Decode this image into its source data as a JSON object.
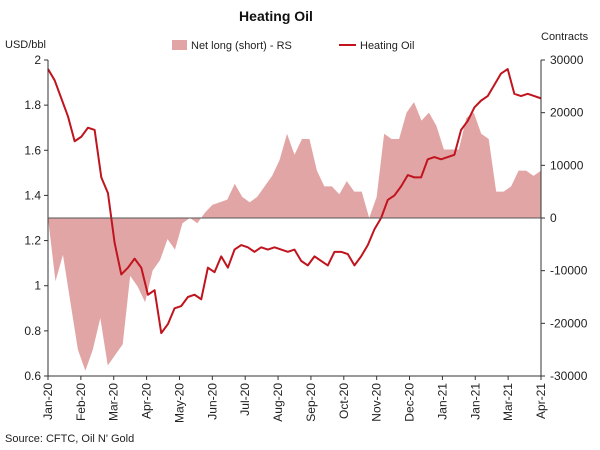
{
  "chart_data": {
    "type": "line",
    "title": "Heating Oil",
    "left_axis_label": "USD/bbl",
    "right_axis_label": "Contracts",
    "source": "Source: CFTC, Oil N' Gold",
    "left_ylim": [
      0.6,
      2.0
    ],
    "right_ylim": [
      -30000,
      30000
    ],
    "left_ticks": [
      "0.6",
      "0.8",
      "1",
      "1.2",
      "1.4",
      "1.6",
      "1.8",
      "2"
    ],
    "right_ticks": [
      "-30000",
      "-20000",
      "-10000",
      "0",
      "10000",
      "20000",
      "30000"
    ],
    "x_ticks": [
      "Jan-20",
      "Feb-20",
      "Mar-20",
      "Apr-20",
      "May-20",
      "Jun-20",
      "Jul-20",
      "Aug-20",
      "Sep-20",
      "Oct-20",
      "Nov-20",
      "Dec-20",
      "Jan-21",
      "Jan-21",
      "Mar-21",
      "Apr-21"
    ],
    "legend": [
      "Net long (short) - RS",
      "Heating Oil"
    ],
    "legend_position": "top",
    "colors": {
      "area": "#e2a5a5",
      "line": "#c0141e"
    },
    "series": [
      {
        "name": "Net long (short) - RS",
        "type": "area",
        "axis": "right",
        "values": [
          0,
          -12000,
          -7000,
          -16000,
          -25000,
          -29000,
          -25000,
          -19000,
          -28000,
          -26000,
          -24000,
          -11000,
          -13000,
          -16000,
          -10000,
          -8000,
          -4000,
          -6000,
          -1000,
          0,
          -1000,
          1000,
          2500,
          3000,
          3500,
          6500,
          4000,
          3000,
          4000,
          6000,
          8000,
          11000,
          16000,
          12000,
          15000,
          15000,
          9000,
          6000,
          6000,
          4500,
          7000,
          5000,
          5000,
          0,
          4000,
          16000,
          15000,
          15000,
          20000,
          22000,
          18500,
          20000,
          17500,
          13000,
          13000,
          13000,
          19000,
          20000,
          16000,
          15000,
          5000,
          5000,
          6000,
          9000,
          9000,
          8000,
          9000
        ]
      },
      {
        "name": "Heating Oil",
        "type": "line",
        "axis": "left",
        "values": [
          1.96,
          1.91,
          1.83,
          1.75,
          1.64,
          1.66,
          1.7,
          1.69,
          1.48,
          1.41,
          1.19,
          1.05,
          1.08,
          1.12,
          1.08,
          0.96,
          0.98,
          0.79,
          0.83,
          0.9,
          0.91,
          0.95,
          0.96,
          0.94,
          1.08,
          1.06,
          1.13,
          1.08,
          1.16,
          1.18,
          1.17,
          1.15,
          1.17,
          1.16,
          1.17,
          1.16,
          1.15,
          1.16,
          1.11,
          1.09,
          1.13,
          1.11,
          1.09,
          1.15,
          1.15,
          1.14,
          1.09,
          1.13,
          1.18,
          1.25,
          1.3,
          1.38,
          1.4,
          1.44,
          1.49,
          1.48,
          1.48,
          1.56,
          1.57,
          1.56,
          1.57,
          1.58,
          1.69,
          1.73,
          1.79,
          1.82,
          1.84,
          1.89,
          1.94,
          1.96,
          1.85,
          1.84,
          1.85,
          1.84,
          1.83
        ]
      }
    ]
  }
}
